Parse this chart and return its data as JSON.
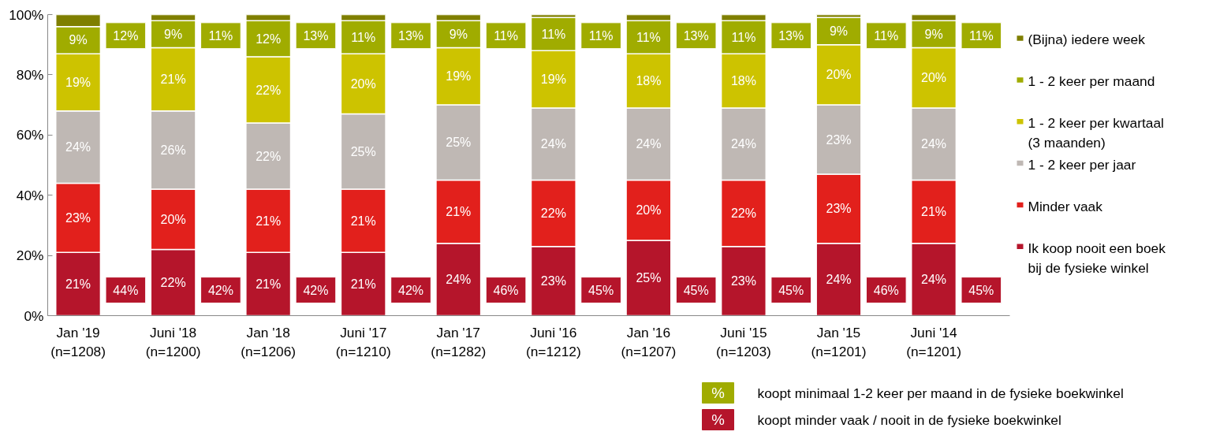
{
  "chart_data": {
    "type": "bar",
    "stacked": true,
    "categories": [
      "Jan '19\n(n=1208)",
      "Juni '18\n(n=1200)",
      "Jan '18\n(n=1206)",
      "Juni '17\n(n=1210)",
      "Jan '17\n(n=1282)",
      "Juni '16\n(n=1212)",
      "Jan '16\n(n=1207)",
      "Juni '15\n(n=1203)",
      "Jan '15\n(n=1201)",
      "Juni '14\n(n=1201)"
    ],
    "series": [
      {
        "name": "Ik koop nooit een boek\nbij de fysieke winkel",
        "color": "#b5152b",
        "values": [
          21,
          22,
          21,
          21,
          24,
          23,
          25,
          23,
          24,
          24
        ],
        "value_labels": [
          "21%",
          "22%",
          "21%",
          "21%",
          "24%",
          "23%",
          "25%",
          "23%",
          "24%",
          "24%"
        ]
      },
      {
        "name": "Minder vaak",
        "color": "#e2201c",
        "values": [
          23,
          20,
          21,
          21,
          21,
          22,
          20,
          22,
          23,
          21
        ],
        "value_labels": [
          "23%",
          "20%",
          "21%",
          "21%",
          "21%",
          "22%",
          "20%",
          "22%",
          "23%",
          "21%"
        ]
      },
      {
        "name": "1 - 2 keer per jaar",
        "color": "#bfb8b4",
        "values": [
          24,
          26,
          22,
          25,
          25,
          24,
          24,
          24,
          23,
          24
        ],
        "value_labels": [
          "24%",
          "26%",
          "22%",
          "25%",
          "25%",
          "24%",
          "24%",
          "24%",
          "23%",
          "24%"
        ]
      },
      {
        "name": "1 - 2 keer per kwartaal\n (3 maanden)",
        "color": "#cdc300",
        "values": [
          19,
          21,
          22,
          20,
          19,
          19,
          18,
          18,
          20,
          20
        ],
        "value_labels": [
          "19%",
          "21%",
          "22%",
          "20%",
          "19%",
          "19%",
          "18%",
          "18%",
          "20%",
          "20%"
        ]
      },
      {
        "name": "1 - 2 keer per maand",
        "color": "#a0ac00",
        "values": [
          9,
          9,
          12,
          11,
          9,
          11,
          11,
          11,
          9,
          9
        ],
        "value_labels": [
          "9%",
          "9%",
          "12%",
          "11%",
          "9%",
          "11%",
          "11%",
          "11%",
          "9%",
          "9%"
        ]
      },
      {
        "name": "(Bijna) iedere week",
        "color": "#7f7f00",
        "values": [
          4,
          2,
          2,
          2,
          2,
          1,
          2,
          2,
          1,
          2
        ]
      }
    ],
    "ylim": [
      0,
      100
    ],
    "yticks": [
      {
        "value": 0,
        "label": "0%"
      },
      {
        "value": 20,
        "label": "20%"
      },
      {
        "value": 40,
        "label": "40%"
      },
      {
        "value": 60,
        "label": "60%"
      },
      {
        "value": 80,
        "label": "80%"
      },
      {
        "value": 100,
        "label": "100%"
      }
    ],
    "legend": "right",
    "grid": false,
    "annotations": [
      "12%",
      "11%",
      "13%",
      "13%",
      "11%",
      "11%",
      "13%",
      "13%",
      "11%",
      "11%",
      "44%",
      "42%",
      "42%",
      "42%",
      "46%",
      "45%",
      "45%",
      "45%",
      "46%",
      "45%",
      "%",
      "koopt minimaal 1-2 keer per maand in de fysieke boekwinkel",
      "%",
      "koopt minder vaak / nooit in de fysieke boekwinkel"
    ]
  }
}
